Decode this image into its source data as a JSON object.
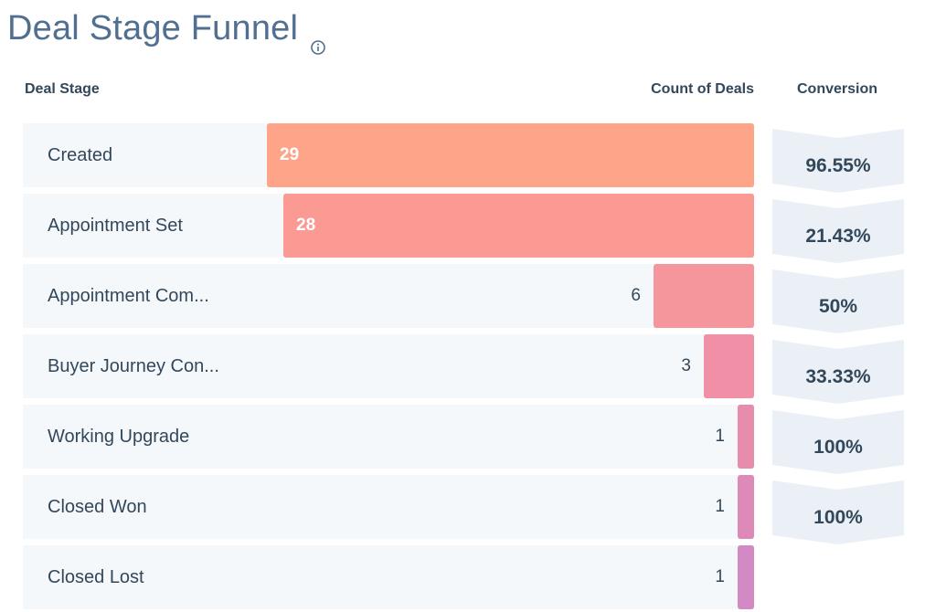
{
  "title": "Deal Stage Funnel",
  "headers": {
    "stage": "Deal Stage",
    "count": "Count of Deals",
    "conversion": "Conversion"
  },
  "colors": {
    "bars": [
      "#fda489",
      "#fa9a93",
      "#f5959c",
      "#f08fa5",
      "#e88cae",
      "#de8ab8",
      "#d389c3"
    ],
    "row_bg": "#f5f8fa",
    "chevron": "#eaf0f6"
  },
  "chart_data": {
    "type": "bar",
    "title": "Deal Stage Funnel",
    "xlabel": "Count of Deals",
    "ylabel": "Deal Stage",
    "categories": [
      "Created",
      "Appointment Set",
      "Appointment Com...",
      "Buyer Journey Con...",
      "Working Upgrade",
      "Closed Won",
      "Closed Lost"
    ],
    "values": [
      29,
      28,
      6,
      3,
      1,
      1,
      1
    ],
    "conversion": [
      "96.55%",
      "21.43%",
      "50%",
      "33.33%",
      "100%",
      "100%"
    ],
    "xlim": [
      0,
      29
    ]
  }
}
